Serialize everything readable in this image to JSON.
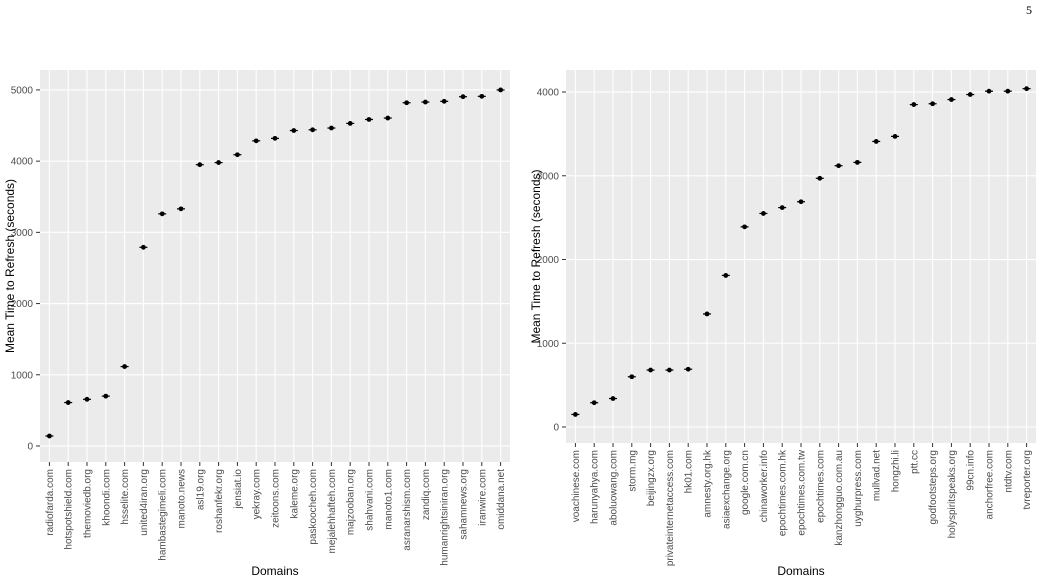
{
  "page_number": "5",
  "chart_data": [
    {
      "type": "scatter",
      "x_label": "Domains",
      "y_label": "Mean Time to Refresh (seconds)",
      "color": "#000000",
      "grid": true,
      "categories": [
        "radiofarda.com",
        "hotspotshield.com",
        "themoviedb.org",
        "khoondi.com",
        "hsselite.com",
        "united4iran.org",
        "hambastegimeli.com",
        "manoto.news",
        "asl19.org",
        "roshanfekr.org",
        "jensiat.io",
        "yekray.com",
        "zeitoons.com",
        "kaleme.org",
        "paskoocheh.com",
        "mejalehhafteh.com",
        "majzooban.org",
        "shahvani.com",
        "manoto1.com",
        "asranarshism.com",
        "zandiq.com",
        "humanrightsiniran.org",
        "sahamnews.org",
        "iranwire.com",
        "omiddana.net"
      ],
      "values": [
        140,
        610,
        655,
        700,
        1115,
        2790,
        3260,
        3330,
        3950,
        3980,
        4090,
        4285,
        4320,
        4430,
        4440,
        4465,
        4530,
        4585,
        4605,
        4820,
        4830,
        4840,
        4905,
        4910,
        5000
      ],
      "ylim": [
        -225,
        5280
      ],
      "yticks": [
        0,
        1000,
        2000,
        3000,
        4000,
        5000
      ]
    },
    {
      "type": "scatter",
      "x_label": "Domains",
      "y_label": "Mean Time to Refresh (seconds)",
      "color": "#000000",
      "grid": true,
      "categories": [
        "voachinese.com",
        "harunyahya.com",
        "aboluowang.com",
        "storm.mg",
        "beijingzx.org",
        "privateinternetaccess.com",
        "hk01.com",
        "amnesty.org.hk",
        "asiaexchange.org",
        "google.com.cn",
        "chinaworker.info",
        "epochtimes.com.hk",
        "epochtimes.com.tw",
        "epochtimes.com",
        "kanzhongguo.com.au",
        "uyghurpress.com",
        "mullvad.net",
        "hongzhi.li",
        "ptt.cc",
        "godfootsteps.org",
        "holyspiritspeaks.org",
        "99cn.info",
        "anchorfree.com",
        "ntdtv.com",
        "tvreporter.org"
      ],
      "values": [
        150,
        290,
        340,
        600,
        680,
        680,
        690,
        1350,
        1810,
        2390,
        2550,
        2620,
        2690,
        2970,
        3120,
        3160,
        3410,
        3470,
        3850,
        3860,
        3910,
        3970,
        4010,
        4010,
        4040
      ],
      "ylim": [
        -191,
        4263
      ],
      "yticks": [
        0,
        1000,
        2000,
        3000,
        4000
      ]
    }
  ]
}
